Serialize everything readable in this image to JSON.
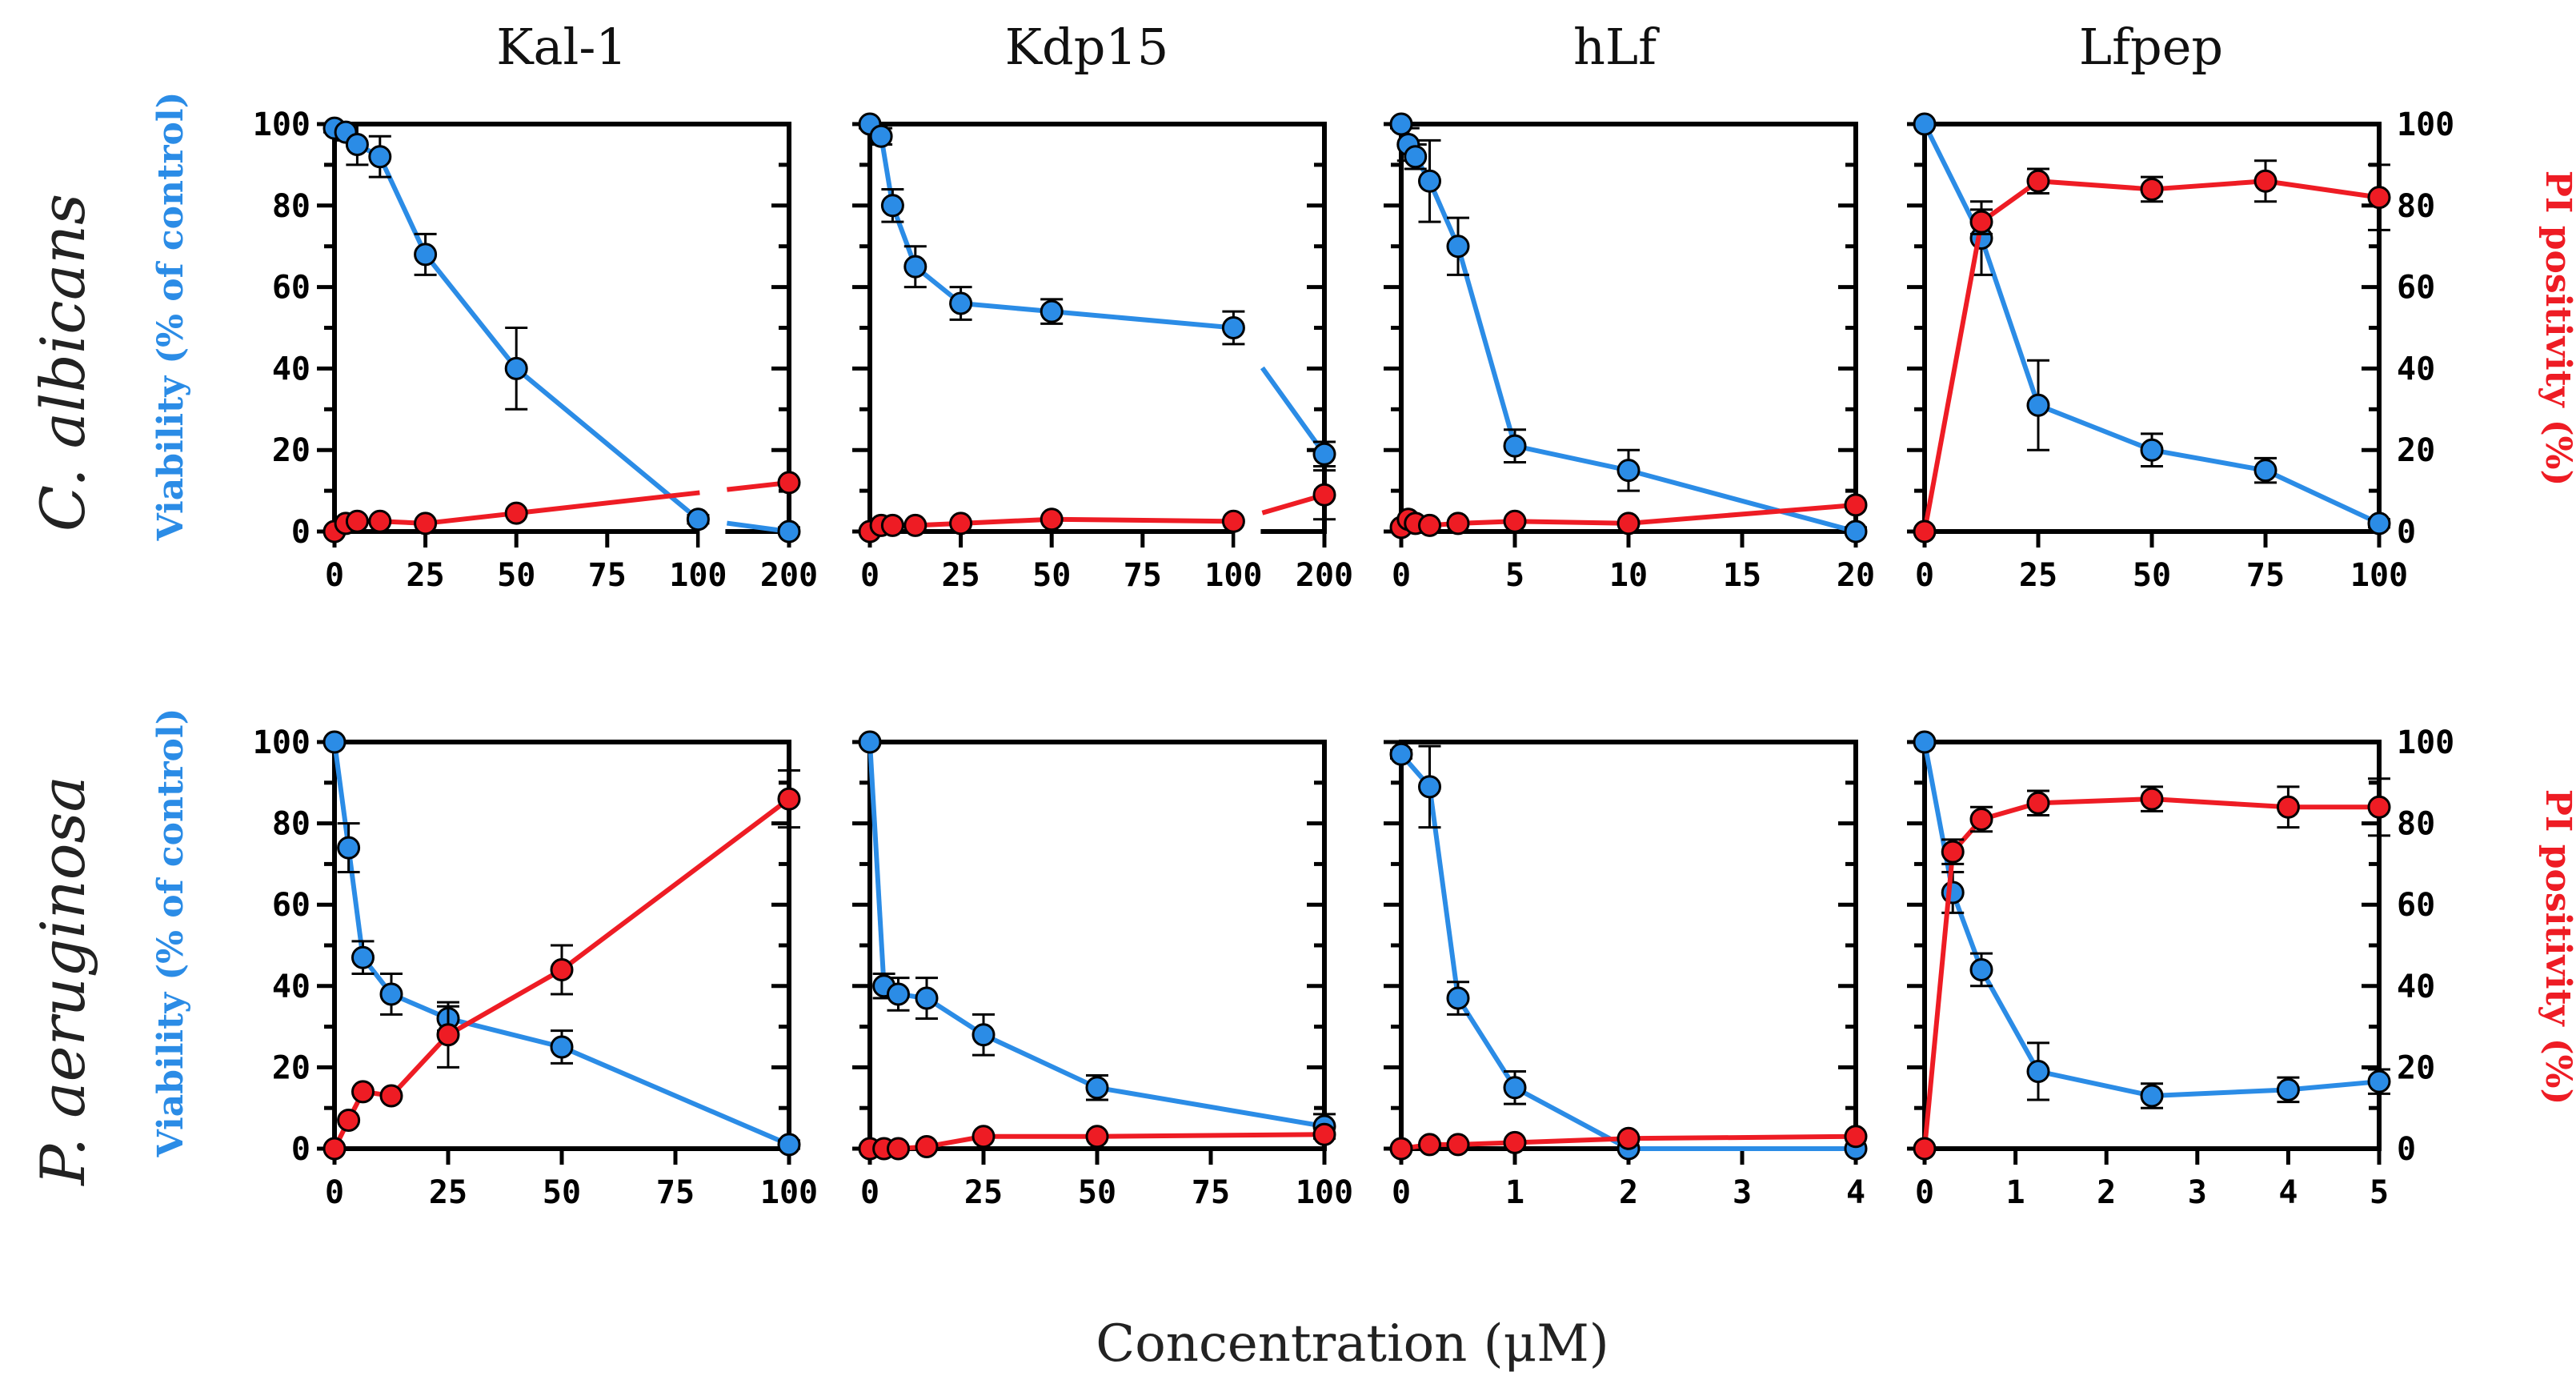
{
  "figure": {
    "x_axis_label": "Concentration (μM)",
    "left_axis_label": "Viability (% of control)",
    "right_axis_label": "PI positivity (%)",
    "column_titles": [
      "Kal-1",
      "Kdp15",
      "hLf",
      "Lfpep"
    ],
    "row_titles": [
      "C. albicans",
      "P. aeruginosa"
    ],
    "colors": {
      "viability": "#2b8ce6",
      "pi": "#ee1c24"
    }
  },
  "chart_data": [
    {
      "type": "line",
      "title": "Kal-1",
      "row": "C. albicans",
      "xlabel": "Concentration (μM)",
      "ylabel": "Viability (% of control)",
      "y2label": "PI positivity (%)",
      "ylim": [
        0,
        100
      ],
      "xlim": [
        0,
        200
      ],
      "x_axis_break": true,
      "xticks": [
        "0",
        "25",
        "50",
        "75",
        "100",
        "200"
      ],
      "yticks": [
        "0",
        "20",
        "40",
        "60",
        "80",
        "100"
      ],
      "series": [
        {
          "name": "Viability",
          "x": [
            0,
            3.1,
            6.25,
            12.5,
            25,
            50,
            100,
            200
          ],
          "y": [
            99,
            98,
            95,
            92,
            68,
            40,
            3,
            0
          ],
          "err": [
            1,
            2,
            5,
            5,
            5,
            10,
            1,
            1
          ]
        },
        {
          "name": "PI positivity",
          "x": [
            0,
            3.1,
            6.25,
            12.5,
            25,
            50,
            200
          ],
          "y": [
            0,
            2,
            2.5,
            2.5,
            2,
            4.5,
            12
          ],
          "err": [
            0,
            0,
            0,
            0,
            0,
            0,
            0
          ]
        }
      ]
    },
    {
      "type": "line",
      "title": "Kdp15",
      "row": "C. albicans",
      "xlabel": "Concentration (μM)",
      "ylabel": "Viability (% of control)",
      "y2label": "PI positivity (%)",
      "ylim": [
        0,
        100
      ],
      "xlim": [
        0,
        200
      ],
      "x_axis_break": true,
      "xticks": [
        "0",
        "25",
        "50",
        "75",
        "100",
        "200"
      ],
      "yticks": [
        "0",
        "20",
        "40",
        "60",
        "80",
        "100"
      ],
      "series": [
        {
          "name": "Viability",
          "x": [
            0,
            3.1,
            6.25,
            12.5,
            25,
            50,
            100,
            200
          ],
          "y": [
            100,
            97,
            80,
            65,
            56,
            54,
            50,
            19
          ],
          "err": [
            1,
            2,
            4,
            5,
            4,
            3,
            4,
            3
          ]
        },
        {
          "name": "PI positivity",
          "x": [
            0,
            3.1,
            6.25,
            12.5,
            25,
            50,
            100,
            200
          ],
          "y": [
            0,
            1.5,
            1.5,
            1.5,
            2,
            3,
            2.5,
            9
          ],
          "err": [
            0,
            0,
            0,
            0,
            0,
            0,
            0,
            6
          ]
        }
      ]
    },
    {
      "type": "line",
      "title": "hLf",
      "row": "C. albicans",
      "xlabel": "Concentration (μM)",
      "ylabel": "Viability (% of control)",
      "y2label": "PI positivity (%)",
      "ylim": [
        0,
        100
      ],
      "xlim": [
        0,
        20
      ],
      "xticks": [
        "0",
        "5",
        "10",
        "15",
        "20"
      ],
      "yticks": [
        "0",
        "20",
        "40",
        "60",
        "80",
        "100"
      ],
      "series": [
        {
          "name": "Viability",
          "x": [
            0,
            0.31,
            0.625,
            1.25,
            2.5,
            5,
            10,
            20
          ],
          "y": [
            100,
            95,
            92,
            86,
            70,
            21,
            15,
            0
          ],
          "err": [
            1,
            4,
            3,
            10,
            7,
            4,
            5,
            1
          ]
        },
        {
          "name": "PI positivity",
          "x": [
            0,
            0.31,
            0.625,
            1.25,
            2.5,
            5,
            10,
            20
          ],
          "y": [
            1,
            3,
            2,
            1.5,
            2,
            2.5,
            2,
            6.5
          ],
          "err": [
            0,
            0,
            0,
            0,
            0,
            0,
            0,
            0
          ]
        }
      ]
    },
    {
      "type": "line",
      "title": "Lfpep",
      "row": "C. albicans",
      "xlabel": "Concentration (μM)",
      "ylabel": "Viability (% of control)",
      "y2label": "PI positivity (%)",
      "ylim": [
        0,
        100
      ],
      "xlim": [
        0,
        100
      ],
      "xticks": [
        "0",
        "25",
        "50",
        "75",
        "100"
      ],
      "yticks": [
        "0",
        "20",
        "40",
        "60",
        "80",
        "100"
      ],
      "series": [
        {
          "name": "Viability",
          "x": [
            0,
            12.5,
            25,
            50,
            75,
            100
          ],
          "y": [
            100,
            72,
            31,
            20,
            15,
            2
          ],
          "err": [
            0,
            9,
            11,
            4,
            3,
            1
          ]
        },
        {
          "name": "PI positivity",
          "x": [
            0,
            12.5,
            25,
            50,
            75,
            100
          ],
          "y": [
            0,
            76,
            86,
            84,
            86,
            82
          ],
          "err": [
            0,
            3,
            3,
            3,
            5,
            8
          ]
        }
      ]
    },
    {
      "type": "line",
      "title": "Kal-1",
      "row": "P. aeruginosa",
      "xlabel": "Concentration (μM)",
      "ylabel": "Viability (% of control)",
      "y2label": "PI positivity (%)",
      "ylim": [
        0,
        100
      ],
      "xlim": [
        0,
        100
      ],
      "xticks": [
        "0",
        "25",
        "50",
        "75",
        "100"
      ],
      "yticks": [
        "0",
        "20",
        "40",
        "60",
        "80",
        "100"
      ],
      "series": [
        {
          "name": "Viability",
          "x": [
            0,
            3.1,
            6.25,
            12.5,
            25,
            50,
            100
          ],
          "y": [
            100,
            74,
            47,
            38,
            32,
            25,
            1
          ],
          "err": [
            0,
            6,
            4,
            5,
            3,
            4,
            1
          ]
        },
        {
          "name": "PI positivity",
          "x": [
            0,
            3.1,
            6.25,
            12.5,
            25,
            50,
            100
          ],
          "y": [
            0,
            7,
            14,
            13,
            28,
            44,
            86
          ],
          "err": [
            0,
            0,
            0,
            0,
            8,
            6,
            7
          ]
        }
      ]
    },
    {
      "type": "line",
      "title": "Kdp15",
      "row": "P. aeruginosa",
      "xlabel": "Concentration (μM)",
      "ylabel": "Viability (% of control)",
      "y2label": "PI positivity (%)",
      "ylim": [
        0,
        100
      ],
      "xlim": [
        0,
        100
      ],
      "xticks": [
        "0",
        "25",
        "50",
        "75",
        "100"
      ],
      "yticks": [
        "0",
        "20",
        "40",
        "60",
        "80",
        "100"
      ],
      "series": [
        {
          "name": "Viability",
          "x": [
            0,
            3.1,
            6.25,
            12.5,
            25,
            50,
            100
          ],
          "y": [
            100,
            40,
            38,
            37,
            28,
            15,
            5.5
          ],
          "err": [
            0,
            3,
            4,
            5,
            5,
            3,
            3
          ]
        },
        {
          "name": "PI positivity",
          "x": [
            0,
            3.1,
            6.25,
            12.5,
            25,
            50,
            100
          ],
          "y": [
            0,
            0,
            0,
            0.5,
            3,
            3,
            3.5
          ],
          "err": [
            0,
            0,
            0,
            0,
            0,
            0,
            0
          ]
        }
      ]
    },
    {
      "type": "line",
      "title": "hLf",
      "row": "P. aeruginosa",
      "xlabel": "Concentration (μM)",
      "ylabel": "Viability (% of control)",
      "y2label": "PI positivity (%)",
      "ylim": [
        0,
        100
      ],
      "xlim": [
        0,
        4
      ],
      "xticks": [
        "0",
        "1",
        "2",
        "3",
        "4"
      ],
      "yticks": [
        "0",
        "20",
        "40",
        "60",
        "80",
        "100"
      ],
      "series": [
        {
          "name": "Viability",
          "x": [
            0,
            0.25,
            0.5,
            1,
            2,
            4
          ],
          "y": [
            97,
            89,
            37,
            15,
            0,
            0
          ],
          "err": [
            1,
            10,
            4,
            4,
            0,
            0
          ]
        },
        {
          "name": "PI positivity",
          "x": [
            0,
            0.25,
            0.5,
            1,
            2,
            4
          ],
          "y": [
            0,
            1,
            1,
            1.5,
            2.5,
            3
          ],
          "err": [
            0,
            0,
            0,
            0,
            0,
            0
          ]
        }
      ]
    },
    {
      "type": "line",
      "title": "Lfpep",
      "row": "P. aeruginosa",
      "xlabel": "Concentration (μM)",
      "ylabel": "Viability (% of control)",
      "y2label": "PI positivity (%)",
      "ylim": [
        0,
        100
      ],
      "xlim": [
        0,
        5
      ],
      "xticks": [
        "0",
        "1",
        "2",
        "3",
        "4",
        "5"
      ],
      "yticks": [
        "0",
        "20",
        "40",
        "60",
        "80",
        "100"
      ],
      "series": [
        {
          "name": "Viability",
          "x": [
            0,
            0.31,
            0.625,
            1.25,
            2.5,
            4,
            5
          ],
          "y": [
            100,
            63,
            44,
            19,
            13,
            14.5,
            16.5
          ],
          "err": [
            0,
            5,
            4,
            7,
            3,
            3,
            3
          ]
        },
        {
          "name": "PI positivity",
          "x": [
            0,
            0.31,
            0.625,
            1.25,
            2.5,
            4,
            5
          ],
          "y": [
            0,
            73,
            81,
            85,
            86,
            84,
            84
          ],
          "err": [
            0,
            3,
            3,
            3,
            3,
            5,
            7
          ]
        }
      ]
    }
  ]
}
